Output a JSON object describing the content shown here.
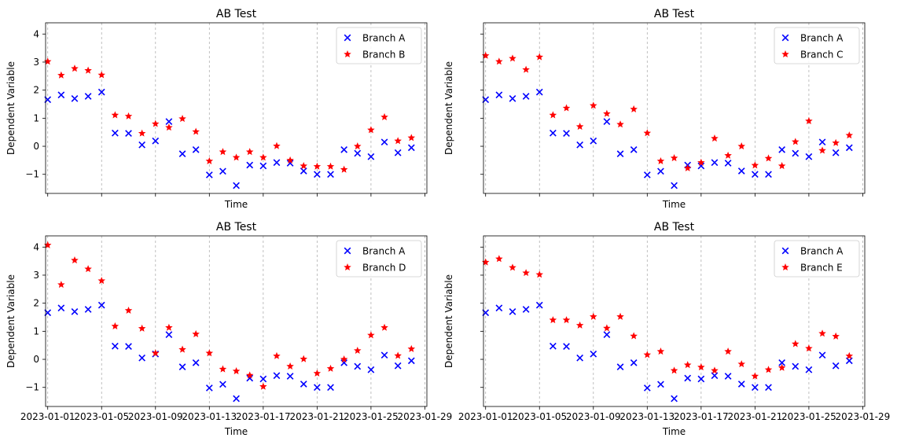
{
  "chart_data": [
    {
      "type": "scatter",
      "title": "AB Test",
      "xlabel": "Time",
      "ylabel": "Dependent Variable",
      "x_ticks": [],
      "y_ticks": [
        "−1",
        "0",
        "1",
        "2",
        "3",
        "4"
      ],
      "grid": "x",
      "legend": "top-right",
      "x": [
        "2023-01-01",
        "2023-01-02",
        "2023-01-03",
        "2023-01-04",
        "2023-01-05",
        "2023-01-06",
        "2023-01-07",
        "2023-01-08",
        "2023-01-09",
        "2023-01-10",
        "2023-01-11",
        "2023-01-12",
        "2023-01-13",
        "2023-01-14",
        "2023-01-15",
        "2023-01-16",
        "2023-01-17",
        "2023-01-18",
        "2023-01-19",
        "2023-01-20",
        "2023-01-21",
        "2023-01-22",
        "2023-01-23",
        "2023-01-24",
        "2023-01-25",
        "2023-01-26",
        "2023-01-27",
        "2023-01-28"
      ],
      "series": [
        {
          "name": "Branch A",
          "marker": "x",
          "color": "#0000ff",
          "values": [
            1.66,
            1.83,
            1.7,
            1.78,
            1.93,
            0.47,
            0.46,
            0.05,
            0.19,
            0.88,
            -0.27,
            -0.12,
            -1.02,
            -0.89,
            -1.4,
            -0.67,
            -0.7,
            -0.58,
            -0.6,
            -0.88,
            -1.0,
            -1.0,
            -0.12,
            -0.25,
            -0.37,
            0.15,
            -0.23,
            -0.05
          ]
        },
        {
          "name": "Branch B",
          "marker": "star",
          "color": "#ff0000",
          "values": [
            3.02,
            2.53,
            2.77,
            2.7,
            2.54,
            1.11,
            1.07,
            0.46,
            0.8,
            0.67,
            0.98,
            0.52,
            -0.53,
            -0.2,
            -0.4,
            -0.2,
            -0.4,
            0.01,
            -0.5,
            -0.7,
            -0.72,
            -0.72,
            -0.83,
            0.0,
            0.58,
            1.04,
            0.19,
            0.3
          ]
        }
      ]
    },
    {
      "type": "scatter",
      "title": "AB Test",
      "xlabel": "Time",
      "ylabel": "Dependent Variable",
      "x_ticks": [],
      "y_ticks": [],
      "grid": "x",
      "legend": "top-right",
      "x": [
        "2023-01-01",
        "2023-01-02",
        "2023-01-03",
        "2023-01-04",
        "2023-01-05",
        "2023-01-06",
        "2023-01-07",
        "2023-01-08",
        "2023-01-09",
        "2023-01-10",
        "2023-01-11",
        "2023-01-12",
        "2023-01-13",
        "2023-01-14",
        "2023-01-15",
        "2023-01-16",
        "2023-01-17",
        "2023-01-18",
        "2023-01-19",
        "2023-01-20",
        "2023-01-21",
        "2023-01-22",
        "2023-01-23",
        "2023-01-24",
        "2023-01-25",
        "2023-01-26",
        "2023-01-27",
        "2023-01-28"
      ],
      "series": [
        {
          "name": "Branch A",
          "marker": "x",
          "color": "#0000ff",
          "values": [
            1.66,
            1.83,
            1.7,
            1.78,
            1.93,
            0.47,
            0.46,
            0.05,
            0.19,
            0.88,
            -0.27,
            -0.12,
            -1.02,
            -0.89,
            -1.4,
            -0.67,
            -0.7,
            -0.58,
            -0.6,
            -0.88,
            -1.0,
            -1.0,
            -0.12,
            -0.25,
            -0.37,
            0.15,
            -0.23,
            -0.05
          ]
        },
        {
          "name": "Branch C",
          "marker": "star",
          "color": "#ff0000",
          "values": [
            3.23,
            3.02,
            3.13,
            2.73,
            3.18,
            1.11,
            1.36,
            0.7,
            1.45,
            1.16,
            0.78,
            1.32,
            0.47,
            -0.53,
            -0.42,
            -0.78,
            -0.58,
            0.28,
            -0.33,
            0.0,
            -0.68,
            -0.43,
            -0.7,
            0.16,
            0.9,
            -0.15,
            0.12,
            0.39
          ]
        }
      ]
    },
    {
      "type": "scatter",
      "title": "AB Test",
      "xlabel": "Time",
      "ylabel": "Dependent Variable",
      "x_ticks": [
        "2023-01-01",
        "2023-01-05",
        "2023-01-09",
        "2023-01-13",
        "2023-01-17",
        "2023-01-21",
        "2023-01-25",
        "2023-01-29"
      ],
      "y_ticks": [
        "−1",
        "0",
        "1",
        "2",
        "3",
        "4"
      ],
      "grid": "x",
      "legend": "top-right",
      "x": [
        "2023-01-01",
        "2023-01-02",
        "2023-01-03",
        "2023-01-04",
        "2023-01-05",
        "2023-01-06",
        "2023-01-07",
        "2023-01-08",
        "2023-01-09",
        "2023-01-10",
        "2023-01-11",
        "2023-01-12",
        "2023-01-13",
        "2023-01-14",
        "2023-01-15",
        "2023-01-16",
        "2023-01-17",
        "2023-01-18",
        "2023-01-19",
        "2023-01-20",
        "2023-01-21",
        "2023-01-22",
        "2023-01-23",
        "2023-01-24",
        "2023-01-25",
        "2023-01-26",
        "2023-01-27",
        "2023-01-28"
      ],
      "series": [
        {
          "name": "Branch A",
          "marker": "x",
          "color": "#0000ff",
          "values": [
            1.66,
            1.83,
            1.7,
            1.78,
            1.93,
            0.47,
            0.46,
            0.05,
            0.19,
            0.88,
            -0.27,
            -0.12,
            -1.02,
            -0.89,
            -1.4,
            -0.67,
            -0.7,
            -0.58,
            -0.6,
            -0.88,
            -1.0,
            -1.0,
            -0.12,
            -0.25,
            -0.37,
            0.15,
            -0.23,
            -0.05
          ]
        },
        {
          "name": "Branch D",
          "marker": "star",
          "color": "#ff0000",
          "values": [
            4.07,
            2.66,
            3.53,
            3.22,
            2.8,
            1.18,
            1.74,
            1.1,
            0.22,
            1.13,
            0.35,
            0.9,
            0.22,
            -0.35,
            -0.42,
            -0.57,
            -0.97,
            0.12,
            -0.25,
            0.01,
            -0.5,
            -0.33,
            0.0,
            0.31,
            0.86,
            1.13,
            0.13,
            0.37
          ]
        }
      ]
    },
    {
      "type": "scatter",
      "title": "AB Test",
      "xlabel": "Time",
      "ylabel": "Dependent Variable",
      "x_ticks": [
        "2023-01-01",
        "2023-01-05",
        "2023-01-09",
        "2023-01-13",
        "2023-01-17",
        "2023-01-21",
        "2023-01-25",
        "2023-01-29"
      ],
      "y_ticks": [],
      "grid": "x",
      "legend": "top-right",
      "x": [
        "2023-01-01",
        "2023-01-02",
        "2023-01-03",
        "2023-01-04",
        "2023-01-05",
        "2023-01-06",
        "2023-01-07",
        "2023-01-08",
        "2023-01-09",
        "2023-01-10",
        "2023-01-11",
        "2023-01-12",
        "2023-01-13",
        "2023-01-14",
        "2023-01-15",
        "2023-01-16",
        "2023-01-17",
        "2023-01-18",
        "2023-01-19",
        "2023-01-20",
        "2023-01-21",
        "2023-01-22",
        "2023-01-23",
        "2023-01-24",
        "2023-01-25",
        "2023-01-26",
        "2023-01-27",
        "2023-01-28"
      ],
      "series": [
        {
          "name": "Branch A",
          "marker": "x",
          "color": "#0000ff",
          "values": [
            1.66,
            1.83,
            1.7,
            1.78,
            1.93,
            0.47,
            0.46,
            0.05,
            0.19,
            0.88,
            -0.27,
            -0.12,
            -1.02,
            -0.89,
            -1.4,
            -0.67,
            -0.7,
            -0.58,
            -0.6,
            -0.88,
            -1.0,
            -1.0,
            -0.12,
            -0.25,
            -0.37,
            0.15,
            -0.23,
            -0.05
          ]
        },
        {
          "name": "Branch E",
          "marker": "star",
          "color": "#ff0000",
          "values": [
            3.46,
            3.58,
            3.27,
            3.08,
            3.02,
            1.4,
            1.4,
            1.21,
            1.52,
            1.11,
            1.52,
            0.83,
            0.16,
            0.28,
            -0.4,
            -0.2,
            -0.28,
            -0.4,
            0.28,
            -0.17,
            -0.6,
            -0.37,
            -0.3,
            0.55,
            0.39,
            0.92,
            0.82,
            0.12
          ]
        }
      ]
    }
  ]
}
